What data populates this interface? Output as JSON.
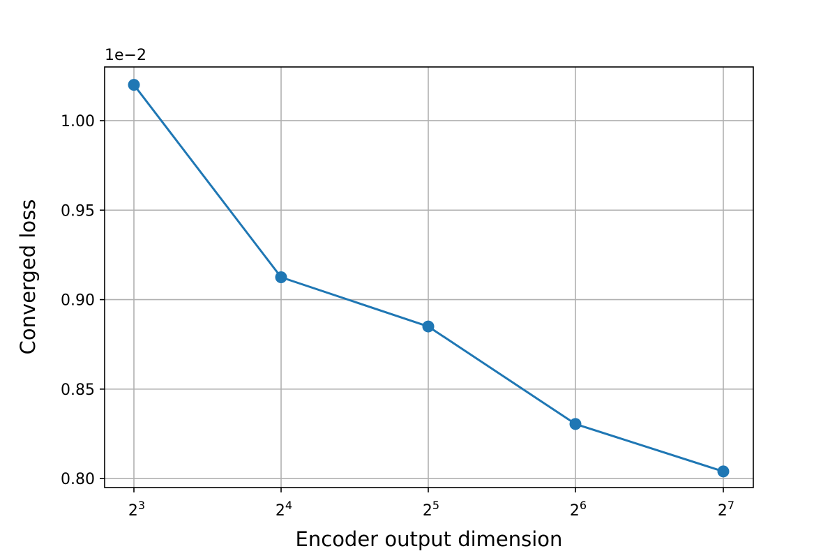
{
  "chart_data": {
    "type": "line",
    "title": "",
    "xlabel": "Encoder output dimension",
    "ylabel": "Converged loss",
    "x_scale": "log2",
    "y_multiplier_label": "1e−2",
    "x": [
      8,
      16,
      32,
      64,
      128
    ],
    "x_tick_labels": [
      {
        "base": "2",
        "exp": "3"
      },
      {
        "base": "2",
        "exp": "4"
      },
      {
        "base": "2",
        "exp": "5"
      },
      {
        "base": "2",
        "exp": "6"
      },
      {
        "base": "2",
        "exp": "7"
      }
    ],
    "y_ticks": [
      0.8,
      0.85,
      0.9,
      0.95,
      1.0
    ],
    "y_tick_labels": [
      "0.80",
      "0.85",
      "0.90",
      "0.95",
      "1.00"
    ],
    "ylim": [
      0.795,
      1.03
    ],
    "series": [
      {
        "values": [
          1.02,
          0.9125,
          0.885,
          0.8305,
          0.804
        ],
        "color": "#1f77b4",
        "marker": "circle"
      }
    ],
    "grid": true,
    "legend": false
  }
}
